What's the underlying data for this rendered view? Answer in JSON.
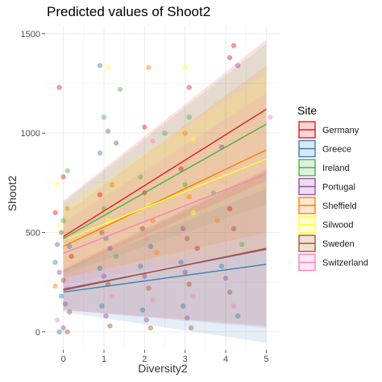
{
  "chart_data": {
    "type": "scatter",
    "title": "Predicted values of Shoot2",
    "xlabel": "Diversity2",
    "ylabel": "Shoot2",
    "xlim": [
      -0.45,
      5.35
    ],
    "ylim": [
      -90,
      1540
    ],
    "x_ticks": [
      0,
      1,
      2,
      3,
      4,
      5
    ],
    "y_ticks": [
      0,
      500,
      1000,
      1500
    ],
    "grid": true,
    "legend": {
      "title": "Site",
      "position": "right"
    },
    "series": [
      {
        "name": "Germany",
        "color": "#e41a1c",
        "intercept": 480,
        "slope": 128,
        "ci_low_0": 300,
        "ci_high_0": 660,
        "ci_low_5": 760,
        "ci_high_5": 1470
      },
      {
        "name": "Greece",
        "color": "#377eb8",
        "intercept": 200,
        "slope": 28,
        "ci_low_0": 100,
        "ci_high_0": 310,
        "ci_low_5": -55,
        "ci_high_5": 720
      },
      {
        "name": "Ireland",
        "color": "#4daf4a",
        "intercept": 470,
        "slope": 115,
        "ci_low_0": 290,
        "ci_high_0": 650,
        "ci_low_5": 640,
        "ci_high_5": 1450
      },
      {
        "name": "Portugal",
        "color": "#984ea3",
        "intercept": 215,
        "slope": 40,
        "ci_low_0": 110,
        "ci_high_0": 320,
        "ci_low_5": 20,
        "ci_high_5": 820
      },
      {
        "name": "Sheffield",
        "color": "#ff7f00",
        "intercept": 430,
        "slope": 97,
        "ci_low_0": 270,
        "ci_high_0": 590,
        "ci_low_5": 500,
        "ci_high_5": 1340
      },
      {
        "name": "Silwood",
        "color": "#ffff33",
        "intercept": 460,
        "slope": 82,
        "ci_low_0": 290,
        "ci_high_0": 630,
        "ci_low_5": 410,
        "ci_high_5": 1300
      },
      {
        "name": "Sweden",
        "color": "#a65628",
        "intercept": 210,
        "slope": 42,
        "ci_low_0": 110,
        "ci_high_0": 310,
        "ci_low_5": 30,
        "ci_high_5": 810
      },
      {
        "name": "Switzerland",
        "color": "#f781bf",
        "intercept": 395,
        "slope": 80,
        "ci_low_0": 240,
        "ci_high_0": 550,
        "ci_low_5": 420,
        "ci_high_5": 1200
      }
    ],
    "points": [
      [
        -0.1,
        1230,
        0
      ],
      [
        0.9,
        1340,
        1
      ],
      [
        1.1,
        1330,
        5
      ],
      [
        1.4,
        1220,
        2
      ],
      [
        2.1,
        1330,
        4
      ],
      [
        3.0,
        1330,
        5
      ],
      [
        3.1,
        1230,
        0
      ],
      [
        4.1,
        1380,
        0
      ],
      [
        4.2,
        1440,
        0
      ],
      [
        4.3,
        1340,
        3
      ],
      [
        0.0,
        780,
        0
      ],
      [
        -0.15,
        740,
        5
      ],
      [
        0.1,
        810,
        2
      ],
      [
        0.9,
        900,
        1
      ],
      [
        1.0,
        1080,
        2
      ],
      [
        1.1,
        1010,
        3
      ],
      [
        1.3,
        950,
        6
      ],
      [
        2.0,
        1030,
        0
      ],
      [
        2.2,
        960,
        7
      ],
      [
        2.5,
        1000,
        2
      ],
      [
        3.0,
        1000,
        4
      ],
      [
        3.1,
        1080,
        2
      ],
      [
        3.2,
        970,
        5
      ],
      [
        3.9,
        930,
        3
      ],
      [
        5.1,
        1080,
        7
      ],
      [
        -0.2,
        600,
        0
      ],
      [
        -0.1,
        540,
        5
      ],
      [
        0.0,
        560,
        2
      ],
      [
        0.1,
        620,
        4
      ],
      [
        -0.05,
        500,
        6
      ],
      [
        0.05,
        470,
        7
      ],
      [
        0.15,
        430,
        1
      ],
      [
        -0.15,
        440,
        3
      ],
      [
        0.9,
        690,
        0
      ],
      [
        1.0,
        620,
        2
      ],
      [
        1.1,
        560,
        5
      ],
      [
        1.2,
        740,
        4
      ],
      [
        0.95,
        500,
        6
      ],
      [
        1.05,
        470,
        1
      ],
      [
        1.15,
        420,
        3
      ],
      [
        1.9,
        780,
        2
      ],
      [
        2.0,
        700,
        0
      ],
      [
        2.1,
        640,
        5
      ],
      [
        2.2,
        560,
        4
      ],
      [
        1.95,
        520,
        6
      ],
      [
        2.05,
        470,
        7
      ],
      [
        2.15,
        430,
        1
      ],
      [
        2.9,
        820,
        0
      ],
      [
        3.0,
        740,
        2
      ],
      [
        3.1,
        680,
        4
      ],
      [
        3.2,
        600,
        5
      ],
      [
        2.95,
        520,
        3
      ],
      [
        3.05,
        470,
        6
      ],
      [
        3.7,
        700,
        2
      ],
      [
        3.8,
        560,
        4
      ],
      [
        4.1,
        620,
        0
      ],
      [
        4.2,
        520,
        6
      ],
      [
        -0.2,
        350,
        1
      ],
      [
        -0.1,
        300,
        3
      ],
      [
        0.0,
        260,
        6
      ],
      [
        0.1,
        220,
        7
      ],
      [
        -0.05,
        180,
        1
      ],
      [
        0.05,
        140,
        3
      ],
      [
        0.15,
        100,
        6
      ],
      [
        -0.15,
        60,
        7
      ],
      [
        0.0,
        20,
        3
      ],
      [
        0.1,
        0,
        6
      ],
      [
        -0.1,
        0,
        1
      ],
      [
        0.9,
        320,
        1
      ],
      [
        1.0,
        280,
        3
      ],
      [
        1.1,
        240,
        6
      ],
      [
        1.2,
        180,
        7
      ],
      [
        0.95,
        130,
        1
      ],
      [
        1.05,
        80,
        3
      ],
      [
        1.15,
        30,
        6
      ],
      [
        1.9,
        330,
        1
      ],
      [
        2.0,
        280,
        3
      ],
      [
        2.1,
        220,
        6
      ],
      [
        2.2,
        160,
        7
      ],
      [
        1.95,
        110,
        1
      ],
      [
        2.05,
        60,
        3
      ],
      [
        2.15,
        20,
        6
      ],
      [
        2.9,
        350,
        1
      ],
      [
        3.0,
        300,
        3
      ],
      [
        3.1,
        240,
        6
      ],
      [
        3.2,
        180,
        7
      ],
      [
        2.95,
        130,
        1
      ],
      [
        3.05,
        70,
        3
      ],
      [
        3.15,
        20,
        6
      ],
      [
        3.9,
        330,
        1
      ],
      [
        4.0,
        270,
        3
      ],
      [
        4.1,
        200,
        6
      ],
      [
        4.2,
        130,
        7
      ],
      [
        4.3,
        80,
        1
      ],
      [
        -0.2,
        230,
        4
      ],
      [
        0.2,
        380,
        0
      ],
      [
        1.3,
        380,
        2
      ],
      [
        2.3,
        400,
        4
      ],
      [
        3.3,
        420,
        0
      ],
      [
        4.4,
        440,
        2
      ]
    ]
  }
}
